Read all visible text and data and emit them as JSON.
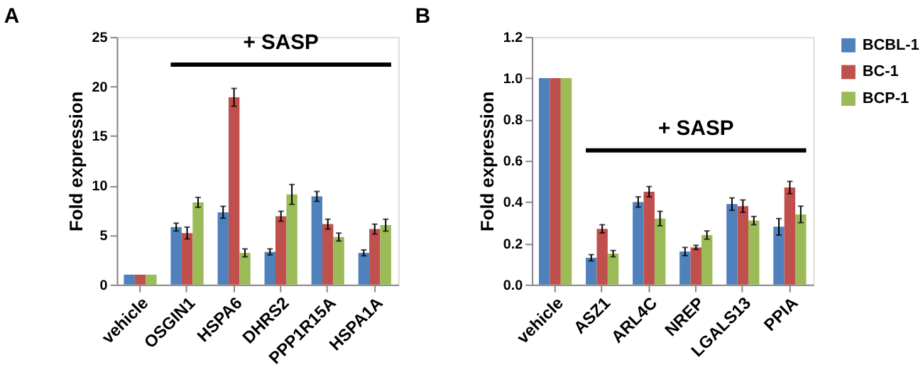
{
  "chart_data": [
    {
      "type": "bar",
      "title": "A",
      "ylabel": "Fold expression",
      "categories": [
        "vehicle",
        "OSGIN1",
        "HSPA6",
        "DHRS2",
        "PPP1R15A",
        "HSPA1A"
      ],
      "ylim": [
        0,
        25
      ],
      "yticks": [
        0,
        5,
        10,
        15,
        20,
        25
      ],
      "grid": false,
      "legend": "right",
      "ref_lines": [
        {
          "axis": "y",
          "value": 22.2,
          "label": "+ SASP"
        }
      ],
      "series": [
        {
          "name": "BCBL-1",
          "color": "#4f81bd",
          "values": [
            1,
            5.8,
            7.3,
            3.3,
            8.9,
            3.2
          ],
          "errors": [
            null,
            0.4,
            0.6,
            0.3,
            0.5,
            0.3
          ]
        },
        {
          "name": "BC-1",
          "color": "#c0504d",
          "values": [
            1,
            5.2,
            18.9,
            6.9,
            6.1,
            5.6
          ],
          "errors": [
            null,
            0.6,
            0.9,
            0.5,
            0.5,
            0.5
          ]
        },
        {
          "name": "BCP-1",
          "color": "#9bbb59",
          "values": [
            1,
            8.3,
            3.2,
            9.1,
            4.8,
            6.0
          ],
          "errors": [
            null,
            0.5,
            0.4,
            1.0,
            0.4,
            0.6
          ]
        }
      ]
    },
    {
      "type": "bar",
      "title": "B",
      "ylabel": "Fold expression",
      "categories": [
        "vehicle",
        "ASZ1",
        "ARL4C",
        "NREP",
        "LGALS13",
        "PPIA"
      ],
      "ylim": [
        0,
        1.2
      ],
      "yticks": [
        {
          "value": 0,
          "label": "0.0"
        },
        {
          "value": 0.2,
          "label": "0.2"
        },
        {
          "value": 0.4,
          "label": "0.4"
        },
        {
          "value": 0.6,
          "label": "0.6"
        },
        {
          "value": 0.8,
          "label": "0.8"
        },
        {
          "value": 1.0,
          "label": "1.0"
        },
        {
          "value": 1.2,
          "label": "1.2"
        }
      ],
      "grid": false,
      "legend": "right",
      "ref_lines": [
        {
          "axis": "y",
          "value": 0.65,
          "label": "+ SASP"
        }
      ],
      "series": [
        {
          "name": "BCBL-1",
          "color": "#4f81bd",
          "values": [
            1,
            0.13,
            0.4,
            0.16,
            0.39,
            0.28
          ],
          "errors": [
            null,
            0.015,
            0.025,
            0.02,
            0.03,
            0.04
          ]
        },
        {
          "name": "BC-1",
          "color": "#c0504d",
          "values": [
            1,
            0.27,
            0.45,
            0.18,
            0.38,
            0.47
          ],
          "errors": [
            null,
            0.02,
            0.025,
            0.01,
            0.03,
            0.03
          ]
        },
        {
          "name": "BCP-1",
          "color": "#9bbb59",
          "values": [
            1,
            0.15,
            0.32,
            0.24,
            0.31,
            0.34
          ],
          "errors": [
            null,
            0.015,
            0.035,
            0.02,
            0.02,
            0.04
          ]
        }
      ]
    }
  ]
}
